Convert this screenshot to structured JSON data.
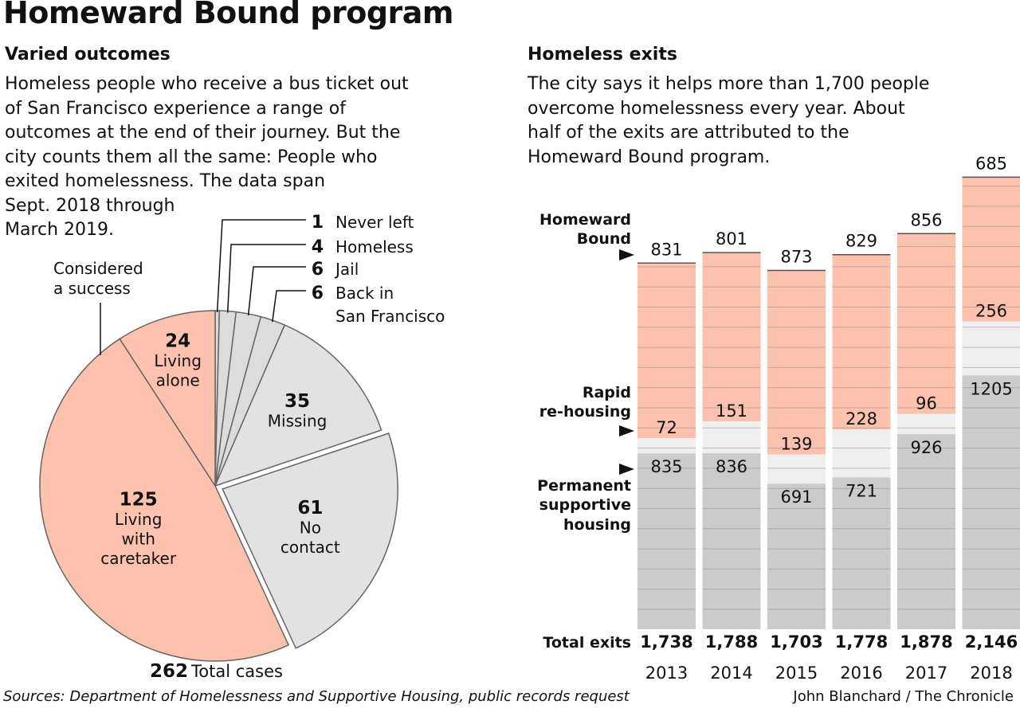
{
  "title": "Homeward Bound program",
  "left": {
    "subhead": "Varied outcomes",
    "desc_lines": [
      "Homeless people who receive a bus ticket out",
      "of San Francisco experience a range of",
      "outcomes at the end of their journey. But the",
      "city counts them all the same: People who",
      "exited homelessness. The data span",
      "Sept. 2018 through",
      "March 2019."
    ],
    "success_label": [
      "Considered",
      "a success"
    ],
    "total_value": "262",
    "total_label": "Total cases"
  },
  "right": {
    "subhead": "Homeless exits",
    "desc_lines": [
      "The city says it helps more than 1,700 people",
      "overcome homelessness every year. About",
      "half of the exits are attributed to the",
      "Homeward Bound program."
    ],
    "side_labels": {
      "homeward": [
        "Homeward",
        "Bound"
      ],
      "rapid": [
        "Rapid",
        "re-housing"
      ],
      "permanent": [
        "Permanent",
        "supportive",
        "housing"
      ]
    },
    "total_exits_label": "Total exits"
  },
  "footer": {
    "sources": "Sources: Department of Homelessness and Supportive Housing, public records request",
    "credit": "John Blanchard / The Chronicle"
  },
  "chart_data": [
    {
      "type": "pie",
      "total": 262,
      "slices": [
        {
          "label": "Never left",
          "value": 1,
          "group": "failure",
          "color": "#dcdcdc"
        },
        {
          "label": "Homeless",
          "value": 4,
          "group": "failure",
          "color": "#dcdcdc"
        },
        {
          "label": "Jail",
          "value": 6,
          "group": "failure",
          "color": "#dcdcdc"
        },
        {
          "label": "Back in San Francisco",
          "value": 6,
          "group": "failure",
          "color": "#dcdcdc"
        },
        {
          "label": "Missing",
          "value": 35,
          "group": "failure",
          "color": "#e2e2e2"
        },
        {
          "label": "No contact",
          "value": 61,
          "group": "failure",
          "color": "#e2e2e2"
        },
        {
          "label": "Living with caretaker",
          "value": 125,
          "group": "success",
          "color": "#fcc2ad"
        },
        {
          "label": "Living alone",
          "value": 24,
          "group": "success",
          "color": "#fcc2ad"
        }
      ]
    },
    {
      "type": "bar",
      "stacked": true,
      "categories": [
        "2013",
        "2014",
        "2015",
        "2016",
        "2017",
        "2018"
      ],
      "series": [
        {
          "name": "Permanent supportive housing",
          "values": [
            835,
            836,
            691,
            721,
            926,
            1205
          ],
          "color": "#cbcbcb"
        },
        {
          "name": "Rapid re-housing",
          "values": [
            72,
            151,
            139,
            228,
            96,
            256
          ],
          "color": "#efefef"
        },
        {
          "name": "Homeward Bound",
          "values": [
            831,
            801,
            873,
            829,
            856,
            685
          ],
          "color": "#fcc2ad"
        }
      ],
      "totals": [
        "1,738",
        "1,788",
        "1,703",
        "1,778",
        "1,878",
        "2,146"
      ]
    }
  ]
}
